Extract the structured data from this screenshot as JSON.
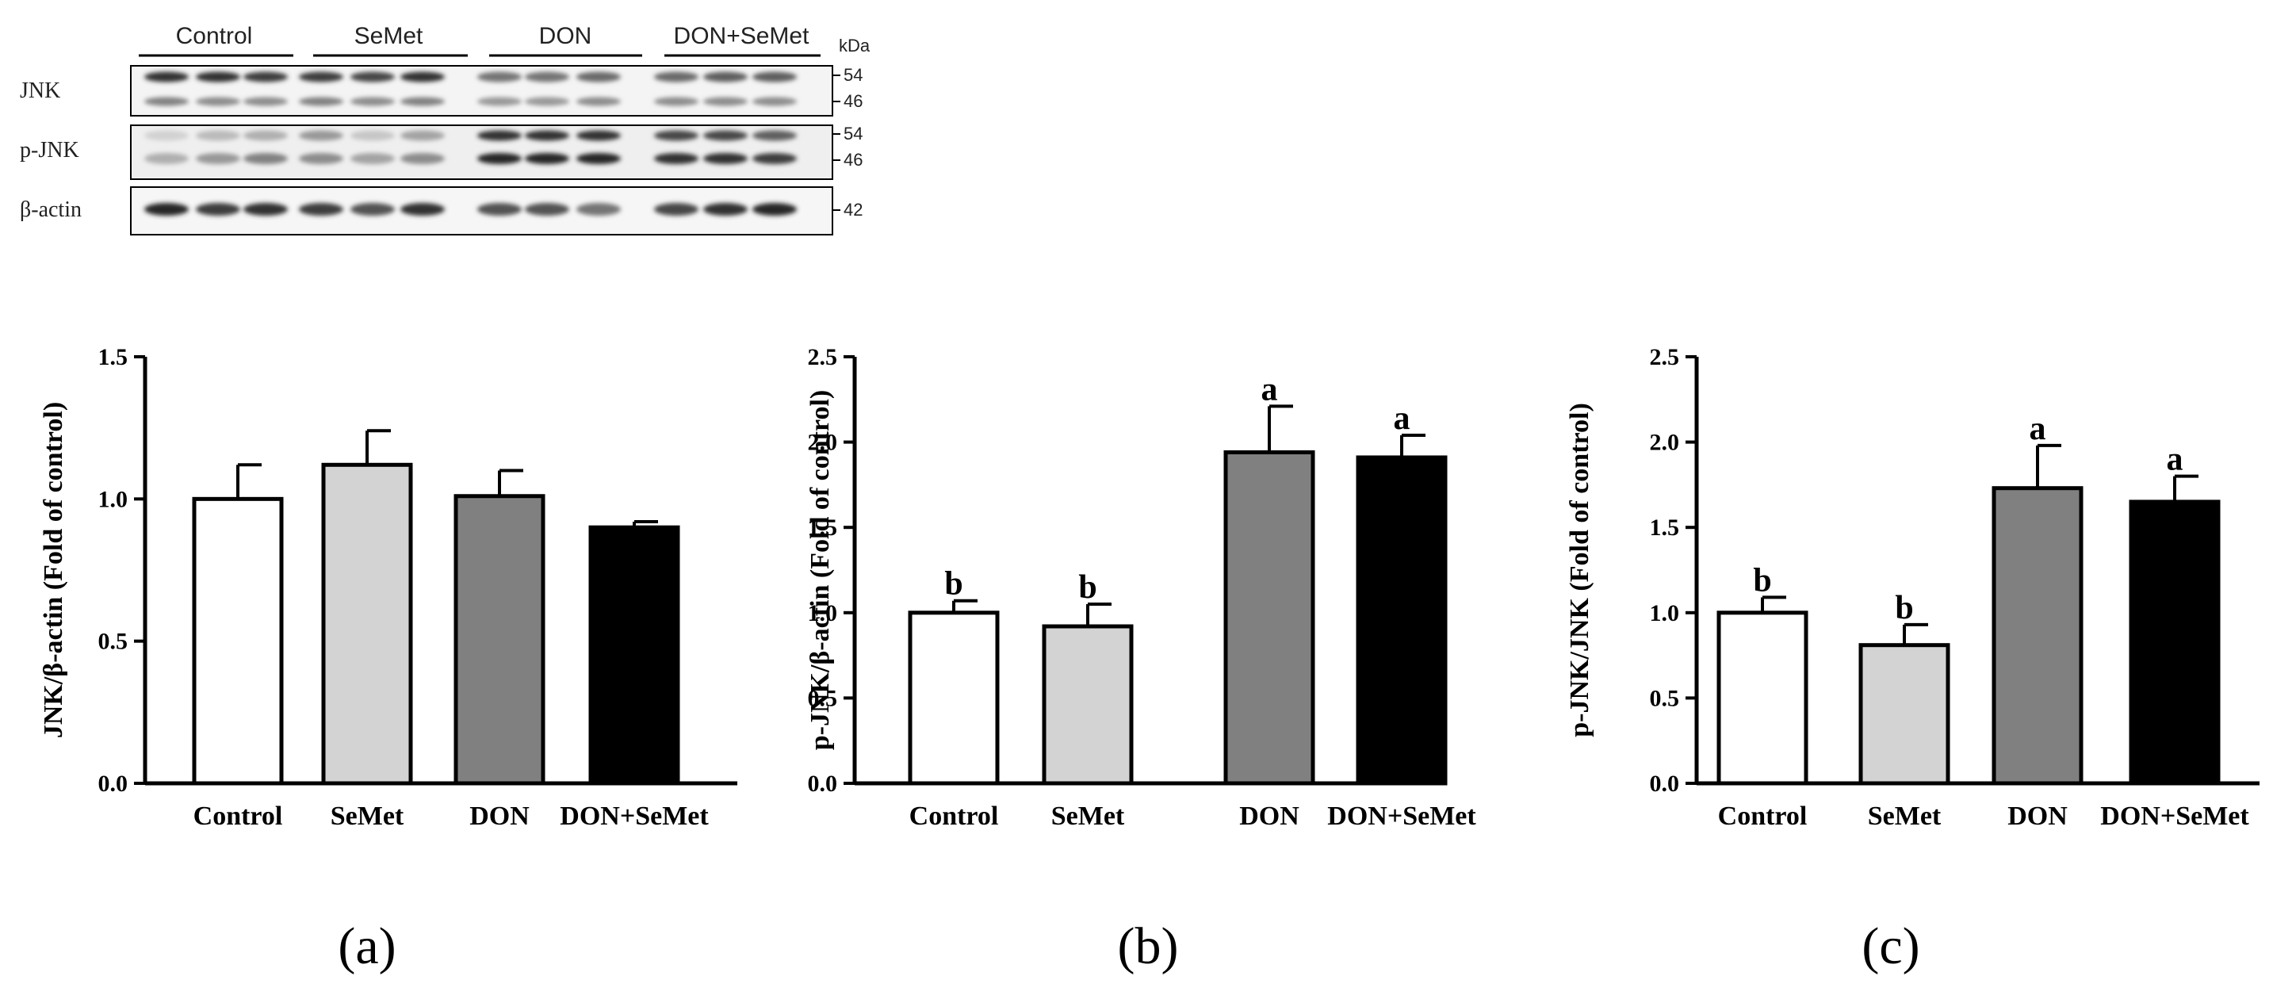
{
  "blot": {
    "groups": [
      "Control",
      "SeMet",
      "DON",
      "DON+SeMet"
    ],
    "kda_label": "kDa",
    "rows": [
      {
        "label": "JNK",
        "markers": [
          "54",
          "46"
        ]
      },
      {
        "label": "p-JNK",
        "markers": [
          "54",
          "46"
        ]
      },
      {
        "label": "β-actin",
        "markers": [
          "42"
        ]
      }
    ]
  },
  "chart_data": [
    {
      "type": "bar",
      "panel_label": "(a)",
      "categories": [
        "Control",
        "SeMet",
        "DON",
        "DON+SeMet"
      ],
      "values": [
        1.0,
        1.12,
        1.01,
        0.9
      ],
      "errors": [
        0.12,
        0.12,
        0.09,
        0.02
      ],
      "significance": [
        "",
        "",
        "",
        ""
      ],
      "colors": [
        "#ffffff",
        "#d3d3d3",
        "#808080",
        "#000000"
      ],
      "ylabel": "JNK/β-actin (Fold of control)",
      "ylim": [
        0,
        1.5
      ],
      "yticks": [
        "0.0",
        "0.5",
        "1.0",
        "1.5"
      ],
      "ytick_values": [
        0,
        0.5,
        1.0,
        1.5
      ]
    },
    {
      "type": "bar",
      "panel_label": "(b)",
      "categories": [
        "Control",
        "SeMet",
        "DON",
        "DON+SeMet"
      ],
      "values": [
        1.0,
        0.92,
        1.94,
        1.91
      ],
      "errors": [
        0.07,
        0.13,
        0.27,
        0.13
      ],
      "significance": [
        "b",
        "b",
        "a",
        "a"
      ],
      "colors": [
        "#ffffff",
        "#d3d3d3",
        "#808080",
        "#000000"
      ],
      "ylabel": "p-JNK/β-actin (Fold of control)",
      "ylim": [
        0,
        2.5
      ],
      "yticks": [
        "0.0",
        "0.5",
        "1.0",
        "1.5",
        "2.0",
        "2.5"
      ],
      "ytick_values": [
        0,
        0.5,
        1.0,
        1.5,
        2.0,
        2.5
      ]
    },
    {
      "type": "bar",
      "panel_label": "(c)",
      "categories": [
        "Control",
        "SeMet",
        "DON",
        "DON+SeMet"
      ],
      "values": [
        1.0,
        0.81,
        1.73,
        1.65
      ],
      "errors": [
        0.09,
        0.12,
        0.25,
        0.15
      ],
      "significance": [
        "b",
        "b",
        "a",
        "a"
      ],
      "colors": [
        "#ffffff",
        "#d3d3d3",
        "#808080",
        "#000000"
      ],
      "ylabel": "p-JNK/JNK (Fold of control)",
      "ylim": [
        0,
        2.5
      ],
      "yticks": [
        "0.0",
        "0.5",
        "1.0",
        "1.5",
        "2.0",
        "2.5"
      ],
      "ytick_values": [
        0,
        0.5,
        1.0,
        1.5,
        2.0,
        2.5
      ]
    }
  ]
}
